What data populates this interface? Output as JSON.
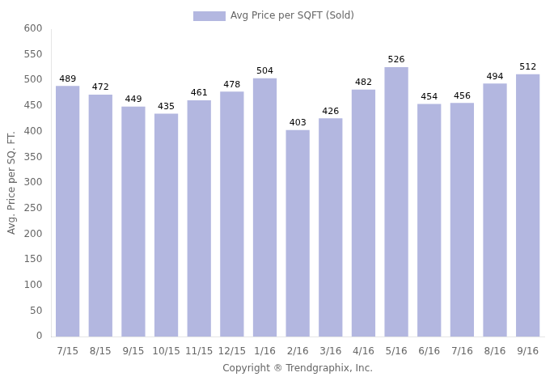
{
  "chart_data": {
    "type": "bar",
    "categories": [
      "7/15",
      "8/15",
      "9/15",
      "10/15",
      "11/15",
      "12/15",
      "1/16",
      "2/16",
      "3/16",
      "4/16",
      "5/16",
      "6/16",
      "7/16",
      "8/16",
      "9/16"
    ],
    "series": [
      {
        "name": "Avg Price per SQFT (Sold)",
        "color": "#b3b7e0",
        "values": [
          489,
          472,
          449,
          435,
          461,
          478,
          504,
          403,
          426,
          482,
          526,
          454,
          456,
          494,
          512
        ]
      }
    ],
    "xlabel": "Copyright ® Trendgraphix, Inc.",
    "ylabel": "Avg. Price per SQ. FT.",
    "ylim": [
      0,
      600
    ],
    "yticks": [
      0,
      50,
      100,
      150,
      200,
      250,
      300,
      350,
      400,
      450,
      500,
      550,
      600
    ],
    "grid": false,
    "legend": "top",
    "data_labels": true
  }
}
